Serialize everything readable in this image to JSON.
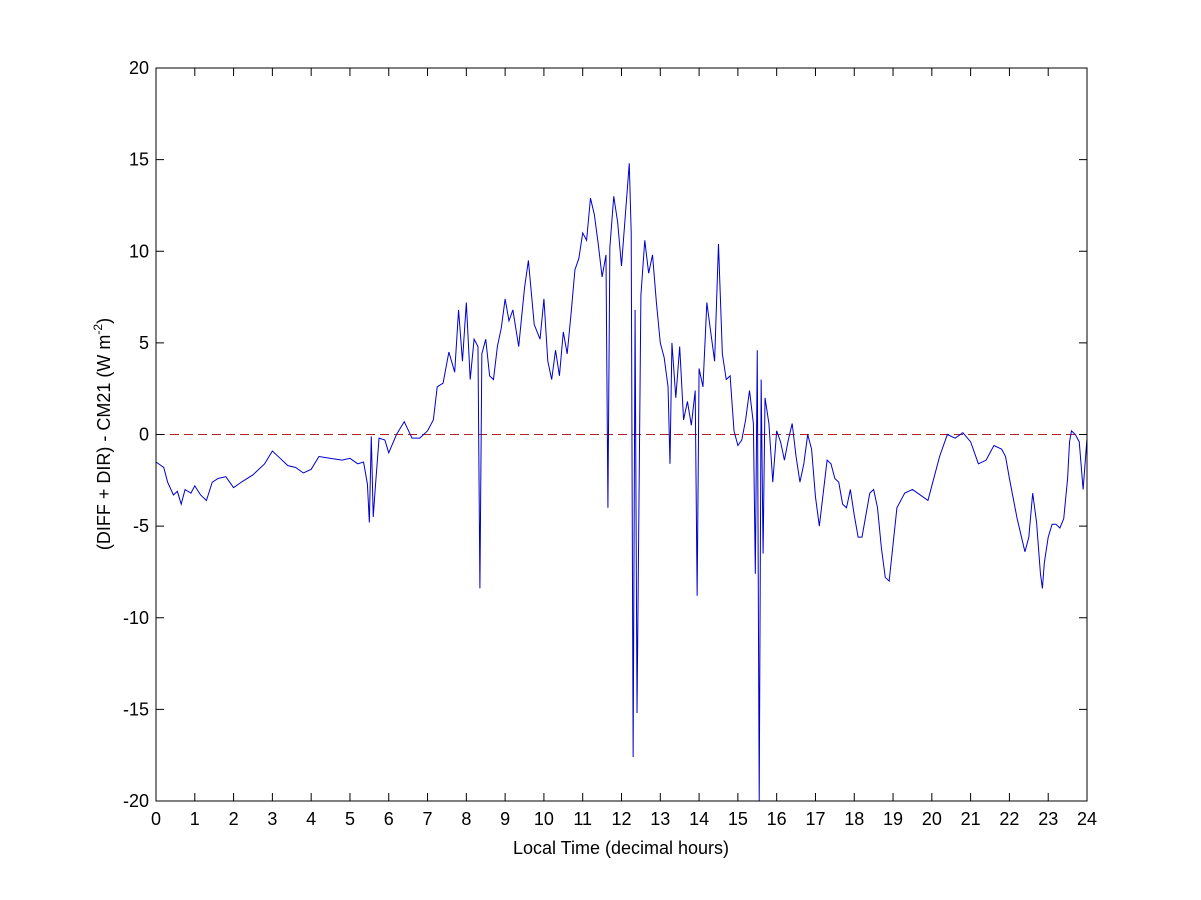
{
  "chart_data": {
    "type": "line",
    "title": "",
    "xlabel": "Local Time (decimal hours)",
    "ylabel": {
      "prefix": "(DIFF + DIR) - CM21 (W m",
      "superscript": "-2",
      "suffix": ")"
    },
    "xlim": [
      0,
      24
    ],
    "ylim": [
      -20,
      20
    ],
    "xticks": [
      0,
      1,
      2,
      3,
      4,
      5,
      6,
      7,
      8,
      9,
      10,
      11,
      12,
      13,
      14,
      15,
      16,
      17,
      18,
      19,
      20,
      21,
      22,
      23,
      24
    ],
    "yticks": [
      -20,
      -15,
      -10,
      -5,
      0,
      5,
      10,
      15,
      20
    ],
    "grid": false,
    "legend": "none",
    "reference_line": {
      "y": 0,
      "style": "dashed",
      "color": "#b22222"
    },
    "series": [
      {
        "color": "#0000cc",
        "points": [
          [
            0.0,
            -1.5
          ],
          [
            0.2,
            -1.8
          ],
          [
            0.3,
            -2.6
          ],
          [
            0.45,
            -3.3
          ],
          [
            0.55,
            -3.1
          ],
          [
            0.65,
            -3.8
          ],
          [
            0.75,
            -3.0
          ],
          [
            0.9,
            -3.2
          ],
          [
            1.0,
            -2.8
          ],
          [
            1.15,
            -3.3
          ],
          [
            1.3,
            -3.6
          ],
          [
            1.45,
            -2.6
          ],
          [
            1.6,
            -2.4
          ],
          [
            1.8,
            -2.3
          ],
          [
            2.0,
            -2.9
          ],
          [
            2.2,
            -2.6
          ],
          [
            2.5,
            -2.2
          ],
          [
            2.8,
            -1.6
          ],
          [
            3.0,
            -0.9
          ],
          [
            3.2,
            -1.3
          ],
          [
            3.4,
            -1.7
          ],
          [
            3.6,
            -1.8
          ],
          [
            3.8,
            -2.1
          ],
          [
            4.0,
            -1.9
          ],
          [
            4.2,
            -1.2
          ],
          [
            4.5,
            -1.3
          ],
          [
            4.8,
            -1.4
          ],
          [
            5.0,
            -1.3
          ],
          [
            5.2,
            -1.6
          ],
          [
            5.35,
            -1.5
          ],
          [
            5.45,
            -2.7
          ],
          [
            5.5,
            -4.8
          ],
          [
            5.55,
            -0.1
          ],
          [
            5.6,
            -4.5
          ],
          [
            5.65,
            -3.0
          ],
          [
            5.75,
            -0.2
          ],
          [
            5.9,
            -0.3
          ],
          [
            6.0,
            -1.0
          ],
          [
            6.2,
            0.0
          ],
          [
            6.4,
            0.7
          ],
          [
            6.6,
            -0.2
          ],
          [
            6.8,
            -0.2
          ],
          [
            7.0,
            0.2
          ],
          [
            7.15,
            0.8
          ],
          [
            7.25,
            2.6
          ],
          [
            7.4,
            2.8
          ],
          [
            7.55,
            4.5
          ],
          [
            7.7,
            3.4
          ],
          [
            7.8,
            6.8
          ],
          [
            7.9,
            4.0
          ],
          [
            8.0,
            7.2
          ],
          [
            8.1,
            3.0
          ],
          [
            8.2,
            5.2
          ],
          [
            8.3,
            4.8
          ],
          [
            8.35,
            -8.4
          ],
          [
            8.4,
            4.4
          ],
          [
            8.5,
            5.2
          ],
          [
            8.6,
            3.2
          ],
          [
            8.7,
            3.0
          ],
          [
            8.8,
            4.8
          ],
          [
            8.9,
            5.8
          ],
          [
            9.0,
            7.4
          ],
          [
            9.1,
            6.2
          ],
          [
            9.2,
            6.8
          ],
          [
            9.35,
            4.8
          ],
          [
            9.5,
            8.0
          ],
          [
            9.6,
            9.5
          ],
          [
            9.75,
            6.0
          ],
          [
            9.9,
            5.2
          ],
          [
            10.0,
            7.4
          ],
          [
            10.1,
            4.0
          ],
          [
            10.2,
            3.0
          ],
          [
            10.3,
            4.6
          ],
          [
            10.4,
            3.2
          ],
          [
            10.5,
            5.6
          ],
          [
            10.6,
            4.4
          ],
          [
            10.7,
            6.6
          ],
          [
            10.8,
            9.0
          ],
          [
            10.9,
            9.6
          ],
          [
            11.0,
            11.0
          ],
          [
            11.1,
            10.6
          ],
          [
            11.2,
            12.9
          ],
          [
            11.3,
            12.0
          ],
          [
            11.4,
            10.4
          ],
          [
            11.5,
            8.6
          ],
          [
            11.6,
            9.8
          ],
          [
            11.65,
            -4.0
          ],
          [
            11.7,
            10.2
          ],
          [
            11.8,
            13.0
          ],
          [
            11.9,
            11.6
          ],
          [
            12.0,
            9.2
          ],
          [
            12.1,
            12.0
          ],
          [
            12.2,
            14.8
          ],
          [
            12.25,
            11.0
          ],
          [
            12.3,
            -17.6
          ],
          [
            12.35,
            6.8
          ],
          [
            12.4,
            -15.2
          ],
          [
            12.5,
            7.6
          ],
          [
            12.6,
            10.6
          ],
          [
            12.7,
            8.8
          ],
          [
            12.8,
            9.8
          ],
          [
            12.9,
            7.2
          ],
          [
            13.0,
            5.0
          ],
          [
            13.1,
            4.2
          ],
          [
            13.2,
            2.6
          ],
          [
            13.25,
            -1.6
          ],
          [
            13.3,
            5.0
          ],
          [
            13.4,
            2.0
          ],
          [
            13.5,
            4.8
          ],
          [
            13.6,
            0.8
          ],
          [
            13.7,
            1.8
          ],
          [
            13.8,
            0.5
          ],
          [
            13.9,
            2.4
          ],
          [
            13.95,
            -8.8
          ],
          [
            14.0,
            3.6
          ],
          [
            14.1,
            2.6
          ],
          [
            14.2,
            7.2
          ],
          [
            14.3,
            5.6
          ],
          [
            14.4,
            4.0
          ],
          [
            14.5,
            10.4
          ],
          [
            14.6,
            4.4
          ],
          [
            14.7,
            3.0
          ],
          [
            14.8,
            3.2
          ],
          [
            14.9,
            0.2
          ],
          [
            15.0,
            -0.6
          ],
          [
            15.1,
            -0.3
          ],
          [
            15.2,
            0.8
          ],
          [
            15.3,
            2.4
          ],
          [
            15.4,
            0.6
          ],
          [
            15.45,
            -7.6
          ],
          [
            15.5,
            4.6
          ],
          [
            15.55,
            -20.0
          ],
          [
            15.6,
            3.0
          ],
          [
            15.65,
            -6.5
          ],
          [
            15.7,
            2.0
          ],
          [
            15.8,
            0.6
          ],
          [
            15.9,
            -2.6
          ],
          [
            16.0,
            0.2
          ],
          [
            16.1,
            -0.4
          ],
          [
            16.2,
            -1.4
          ],
          [
            16.3,
            -0.3
          ],
          [
            16.4,
            0.6
          ],
          [
            16.5,
            -1.2
          ],
          [
            16.6,
            -2.6
          ],
          [
            16.7,
            -1.6
          ],
          [
            16.8,
            0.0
          ],
          [
            16.9,
            -0.8
          ],
          [
            17.0,
            -3.4
          ],
          [
            17.1,
            -5.0
          ],
          [
            17.2,
            -3.2
          ],
          [
            17.3,
            -1.4
          ],
          [
            17.4,
            -1.6
          ],
          [
            17.5,
            -2.4
          ],
          [
            17.6,
            -2.6
          ],
          [
            17.7,
            -3.8
          ],
          [
            17.8,
            -4.0
          ],
          [
            17.9,
            -3.0
          ],
          [
            18.0,
            -4.4
          ],
          [
            18.1,
            -5.6
          ],
          [
            18.2,
            -5.6
          ],
          [
            18.3,
            -4.4
          ],
          [
            18.4,
            -3.2
          ],
          [
            18.5,
            -3.0
          ],
          [
            18.6,
            -4.0
          ],
          [
            18.7,
            -6.2
          ],
          [
            18.8,
            -7.8
          ],
          [
            18.9,
            -8.0
          ],
          [
            19.0,
            -6.0
          ],
          [
            19.1,
            -4.0
          ],
          [
            19.3,
            -3.2
          ],
          [
            19.5,
            -3.0
          ],
          [
            19.7,
            -3.3
          ],
          [
            19.9,
            -3.6
          ],
          [
            20.0,
            -2.8
          ],
          [
            20.2,
            -1.2
          ],
          [
            20.4,
            0.0
          ],
          [
            20.6,
            -0.2
          ],
          [
            20.8,
            0.1
          ],
          [
            21.0,
            -0.4
          ],
          [
            21.2,
            -1.6
          ],
          [
            21.4,
            -1.4
          ],
          [
            21.6,
            -0.6
          ],
          [
            21.8,
            -0.8
          ],
          [
            21.9,
            -1.2
          ],
          [
            22.0,
            -2.4
          ],
          [
            22.2,
            -4.6
          ],
          [
            22.4,
            -6.4
          ],
          [
            22.5,
            -5.6
          ],
          [
            22.6,
            -3.2
          ],
          [
            22.7,
            -4.8
          ],
          [
            22.8,
            -7.6
          ],
          [
            22.85,
            -8.4
          ],
          [
            22.9,
            -7.0
          ],
          [
            23.0,
            -5.6
          ],
          [
            23.1,
            -4.9
          ],
          [
            23.2,
            -4.9
          ],
          [
            23.3,
            -5.1
          ],
          [
            23.4,
            -4.6
          ],
          [
            23.5,
            -2.4
          ],
          [
            23.55,
            -0.4
          ],
          [
            23.6,
            0.2
          ],
          [
            23.7,
            0.0
          ],
          [
            23.8,
            -0.4
          ],
          [
            23.9,
            -3.0
          ],
          [
            24.0,
            -0.2
          ]
        ]
      }
    ]
  }
}
